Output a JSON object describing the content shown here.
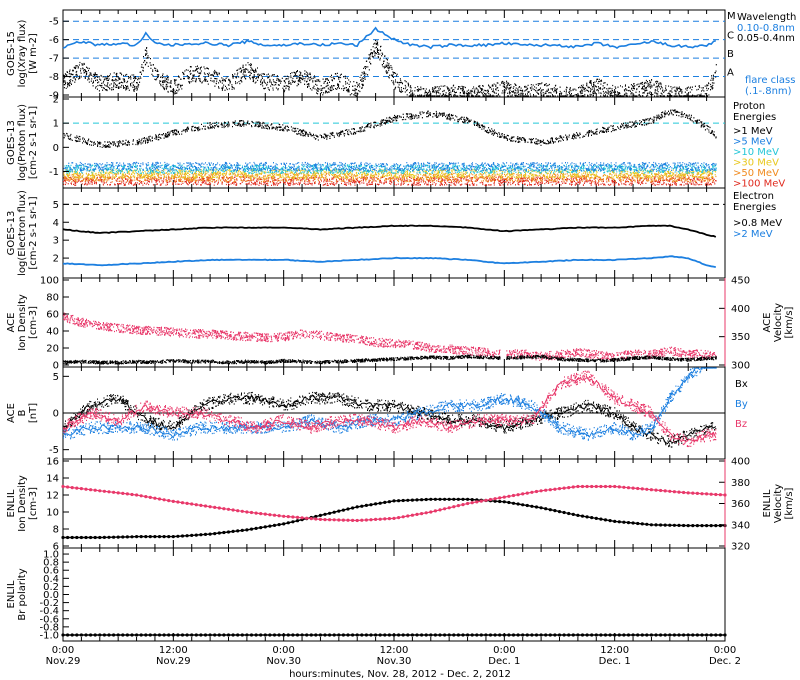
{
  "figure": {
    "xlabel": "hours:minutes, Nov. 28, 2012 - Dec. 2, 2012",
    "x_ticks": [
      {
        "time": "0:00",
        "date": "Nov.29"
      },
      {
        "time": "12:00",
        "date": "Nov.29"
      },
      {
        "time": "0:00",
        "date": "Nov.30"
      },
      {
        "time": "12:00",
        "date": "Nov.30"
      },
      {
        "time": "0:00",
        "date": "Dec. 1"
      },
      {
        "time": "12:00",
        "date": "Dec. 1"
      },
      {
        "time": "0:00",
        "date": "Dec. 2"
      }
    ]
  },
  "colors": {
    "black": "#000000",
    "blue": "#1c7fe0",
    "pink": "#e8386a",
    "cyan": "#24c6d8",
    "green": "#3fbf3f",
    "yellow": "#e8c81e",
    "orange": "#f08a1e",
    "red": "#e02a1e"
  },
  "chart_data": [
    {
      "type": "line",
      "ylabel_1": "GOES-15",
      "ylabel_2": "log(Xray flux)",
      "ylabel_3": "[W m-2]",
      "ylim": [
        -9,
        -4.5
      ],
      "y_ticks": [
        "-5",
        "-6",
        "-7",
        "-8",
        "-9"
      ],
      "flare_classes": [
        "M",
        "C",
        "B",
        "A"
      ],
      "legend_title": "Wavelength",
      "legend_items": [
        {
          "name": "0.10-0.8nm",
          "color": "#1c7fe0"
        },
        {
          "name": "0.05-0.4nm",
          "color": "#000000"
        }
      ],
      "legend_note_1": "flare class",
      "legend_note_2": "(.1-.8nm)",
      "x_hours": [
        0,
        2,
        4,
        6,
        8,
        9,
        10,
        12,
        14,
        16,
        18,
        20,
        22,
        24,
        26,
        28,
        30,
        32,
        34,
        36,
        38,
        40,
        42,
        44,
        46,
        48,
        50,
        52,
        54,
        56,
        58,
        60,
        62,
        64,
        66,
        68,
        70,
        71
      ],
      "series": [
        {
          "name": "0.10-0.8nm",
          "values": [
            -6.4,
            -6.1,
            -6.3,
            -6.2,
            -6.3,
            -5.7,
            -6.2,
            -6.3,
            -6.2,
            -6.2,
            -6.3,
            -6.1,
            -6.3,
            -6.3,
            -6.2,
            -6.3,
            -6.2,
            -6.3,
            -5.4,
            -6.0,
            -6.3,
            -6.4,
            -6.3,
            -6.3,
            -6.3,
            -6.2,
            -6.3,
            -6.3,
            -6.3,
            -6.4,
            -6.2,
            -6.4,
            -6.3,
            -6.1,
            -6.3,
            -6.4,
            -6.3,
            -6.1
          ]
        },
        {
          "name": "0.05-0.4nm",
          "values": [
            -8.3,
            -7.6,
            -8.4,
            -8.2,
            -8.4,
            -6.8,
            -8.0,
            -8.6,
            -7.8,
            -8.0,
            -8.5,
            -7.6,
            -8.3,
            -8.4,
            -8.0,
            -8.6,
            -8.2,
            -8.8,
            -6.3,
            -8.2,
            -9.0,
            -9.0,
            -8.9,
            -9.0,
            -8.9,
            -8.6,
            -9.0,
            -8.7,
            -9.0,
            -9.0,
            -8.5,
            -9.0,
            -8.8,
            -8.6,
            -9.0,
            -9.0,
            -8.9,
            -7.8
          ]
        }
      ]
    },
    {
      "type": "scatter",
      "ylabel_1": "GOES-13",
      "ylabel_2": "log(Proton flux)",
      "ylabel_3": "[cm-2 s-1 sr-1]",
      "ylim": [
        -1.6,
        2.0
      ],
      "y_ticks": [
        "2",
        "1",
        "0",
        "-1"
      ],
      "legend_title_1": "Proton",
      "legend_title_2": "Energies",
      "legend_items": [
        {
          "name": ">1 MeV",
          "color": "#000000"
        },
        {
          "name": ">5 MeV",
          "color": "#1c7fe0"
        },
        {
          "name": ">10 MeV",
          "color": "#24c6d8"
        },
        {
          "name": ">30 MeV",
          "color": "#e8c81e"
        },
        {
          "name": ">50 MeV",
          "color": "#f08a1e"
        },
        {
          "name": ">100 MeV",
          "color": "#e02a1e"
        }
      ],
      "x_hours": [
        0,
        4,
        8,
        12,
        16,
        20,
        24,
        28,
        32,
        36,
        40,
        44,
        48,
        52,
        56,
        60,
        64,
        66,
        68,
        70,
        71
      ],
      "series": [
        {
          "name": ">1 MeV",
          "values": [
            0.5,
            0.1,
            0.2,
            0.6,
            0.9,
            1.0,
            0.8,
            0.4,
            0.7,
            1.2,
            1.4,
            1.1,
            0.4,
            0.2,
            0.5,
            0.8,
            1.1,
            1.5,
            1.3,
            0.8,
            0.5
          ]
        },
        {
          "name": ">5 MeV",
          "values": [
            -0.8,
            -0.8,
            -0.8,
            -0.8,
            -0.8,
            -0.8,
            -0.8,
            -0.8,
            -0.8,
            -0.8,
            -0.8,
            -0.8,
            -0.8,
            -0.8,
            -0.8,
            -0.8,
            -0.8,
            -0.8,
            -0.8,
            -0.8,
            -0.8
          ]
        },
        {
          "name": ">10 MeV",
          "values": [
            -0.9,
            -0.9,
            -0.9,
            -0.9,
            -0.9,
            -0.9,
            -0.9,
            -0.9,
            -0.9,
            -0.9,
            -0.9,
            -0.9,
            -0.9,
            -0.9,
            -0.9,
            -0.9,
            -0.9,
            -0.9,
            -0.9,
            -0.9,
            -0.9
          ]
        },
        {
          "name": ">30 MeV",
          "values": [
            -1.1,
            -1.1,
            -1.1,
            -1.1,
            -1.1,
            -1.1,
            -1.1,
            -1.1,
            -1.1,
            -1.1,
            -1.1,
            -1.1,
            -1.1,
            -1.1,
            -1.1,
            -1.1,
            -1.1,
            -1.1,
            -1.1,
            -1.1,
            -1.1
          ]
        },
        {
          "name": ">50 MeV",
          "values": [
            -1.25,
            -1.25,
            -1.25,
            -1.25,
            -1.25,
            -1.25,
            -1.25,
            -1.25,
            -1.25,
            -1.25,
            -1.25,
            -1.25,
            -1.25,
            -1.25,
            -1.25,
            -1.25,
            -1.25,
            -1.25,
            -1.25,
            -1.25,
            -1.25
          ]
        },
        {
          "name": ">100 MeV",
          "values": [
            -1.4,
            -1.4,
            -1.4,
            -1.4,
            -1.4,
            -1.4,
            -1.4,
            -1.4,
            -1.4,
            -1.4,
            -1.4,
            -1.4,
            -1.4,
            -1.4,
            -1.4,
            -1.4,
            -1.4,
            -1.4,
            -1.4,
            -1.4,
            -1.4
          ]
        }
      ],
      "reference_line": 1.0
    },
    {
      "type": "line",
      "ylabel_1": "GOES-13",
      "ylabel_2": "log(Electron flux)",
      "ylabel_3": "[cm-2 s-1 sr-1]",
      "ylim": [
        1.0,
        5.8
      ],
      "y_ticks": [
        "5",
        "4",
        "3",
        "2"
      ],
      "legend_title_1": "Electron",
      "legend_title_2": "Energies",
      "legend_items": [
        {
          "name": ">0.8 MeV",
          "color": "#000000"
        },
        {
          "name": ">2 MeV",
          "color": "#1c7fe0"
        }
      ],
      "x_hours": [
        0,
        4,
        8,
        12,
        16,
        20,
        24,
        28,
        32,
        36,
        40,
        44,
        48,
        52,
        56,
        60,
        64,
        66,
        68,
        70,
        71
      ],
      "series": [
        {
          "name": ">0.8 MeV",
          "values": [
            3.6,
            3.4,
            3.5,
            3.6,
            3.7,
            3.7,
            3.7,
            3.6,
            3.7,
            3.8,
            3.8,
            3.7,
            3.5,
            3.6,
            3.7,
            3.7,
            3.8,
            3.8,
            3.6,
            3.3,
            3.2
          ]
        },
        {
          "name": ">2 MeV",
          "values": [
            1.7,
            1.6,
            1.7,
            1.8,
            1.9,
            1.9,
            1.9,
            1.8,
            1.9,
            2.0,
            2.0,
            1.9,
            1.7,
            1.8,
            1.9,
            1.9,
            2.0,
            2.1,
            2.0,
            1.6,
            1.5
          ]
        }
      ],
      "reference_line": 5.0
    },
    {
      "type": "scatter",
      "ylabel_1": "ACE",
      "ylabel_2": "Ion Density",
      "ylabel_3": "[cm-3]",
      "ylim": [
        0,
        100
      ],
      "y_ticks": [
        "100",
        "80",
        "60",
        "40",
        "20",
        "0"
      ],
      "ylabel_right_1": "ACE",
      "ylabel_right_2": "Velocity",
      "ylabel_right_3": "[km/s]",
      "y2lim": [
        300,
        450
      ],
      "y2_ticks": [
        "450",
        "400",
        "350",
        "300"
      ],
      "x_hours": [
        0,
        2,
        4,
        6,
        8,
        10,
        12,
        14,
        16,
        18,
        20,
        22,
        24,
        26,
        28,
        30,
        32,
        34,
        36,
        38,
        40,
        42,
        44,
        46,
        48,
        50,
        52,
        54,
        56,
        58,
        60,
        62,
        64,
        66,
        68,
        70,
        71
      ],
      "series": [
        {
          "name": "Velocity",
          "axis": "right",
          "color": "#e8386a",
          "values": [
            385,
            375,
            370,
            365,
            362,
            360,
            358,
            355,
            355,
            352,
            350,
            348,
            350,
            355,
            352,
            348,
            345,
            340,
            338,
            335,
            330,
            328,
            325,
            322,
            318,
            320,
            315,
            318,
            322,
            318,
            315,
            320,
            318,
            325,
            320,
            318,
            320
          ]
        },
        {
          "name": "Ion Density",
          "axis": "left",
          "color": "#000000",
          "values": [
            3,
            4,
            3,
            3,
            4,
            3,
            5,
            4,
            4,
            3,
            4,
            3,
            5,
            4,
            3,
            4,
            5,
            6,
            7,
            8,
            9,
            8,
            10,
            9,
            8,
            9,
            10,
            7,
            6,
            5,
            6,
            8,
            9,
            7,
            6,
            8,
            8
          ]
        }
      ],
      "data_gap_hours": [
        47.5,
        48.2
      ]
    },
    {
      "type": "line",
      "ylabel_1": "ACE",
      "ylabel_2": "B",
      "ylabel_3": "[nT]",
      "ylim": [
        -6,
        6
      ],
      "y_ticks": [
        "5",
        "0",
        "-5"
      ],
      "legend_items": [
        {
          "name": "Bx",
          "color": "#000000"
        },
        {
          "name": "By",
          "color": "#1c7fe0"
        },
        {
          "name": "Bz",
          "color": "#e8386a"
        }
      ],
      "x_hours": [
        0,
        3,
        6,
        9,
        12,
        15,
        18,
        21,
        24,
        27,
        30,
        33,
        36,
        39,
        42,
        45,
        48,
        51,
        54,
        57,
        60,
        62,
        64,
        66,
        68,
        70,
        71
      ],
      "series": [
        {
          "name": "Bx",
          "values": [
            -2,
            1,
            2,
            -1,
            -2,
            1,
            2,
            2,
            1,
            2,
            2,
            1,
            1,
            0,
            -1,
            -1,
            -2,
            -1,
            0,
            1,
            0,
            -2,
            -3,
            -4,
            -3,
            -2,
            -2
          ]
        },
        {
          "name": "By",
          "values": [
            -3,
            -2,
            -2,
            -2,
            -3,
            -2,
            -2,
            -2,
            -2,
            -1,
            -2,
            -1,
            -1,
            0,
            1,
            1,
            2,
            1,
            -2,
            -3,
            -2,
            -3,
            -2,
            2,
            5,
            7,
            7
          ]
        },
        {
          "name": "Bz",
          "values": [
            -2,
            0,
            -1,
            1,
            0,
            0,
            -1,
            -2,
            -1,
            -2,
            -1,
            -1,
            -2,
            -1,
            -2,
            -1,
            -1,
            -1,
            4,
            5,
            2,
            1,
            0,
            -3,
            -4,
            -3,
            -3
          ]
        }
      ]
    },
    {
      "type": "line",
      "ylabel_1": "ENLIL",
      "ylabel_2": "Ion Density",
      "ylabel_3": "[cm-3]",
      "ylim": [
        6,
        16
      ],
      "y_ticks": [
        "16",
        "14",
        "12",
        "10",
        "8",
        "6"
      ],
      "ylabel_right_1": "ENLIL",
      "ylabel_right_2": "Velocity",
      "ylabel_right_3": "[km/s]",
      "y2lim": [
        320,
        400
      ],
      "y2_ticks": [
        "400",
        "380",
        "360",
        "340",
        "320"
      ],
      "x_hours": [
        0,
        4,
        8,
        12,
        16,
        20,
        24,
        28,
        32,
        36,
        40,
        44,
        48,
        52,
        56,
        60,
        64,
        68,
        72
      ],
      "series": [
        {
          "name": "Density",
          "axis": "left",
          "color": "#000000",
          "values": [
            7.0,
            7.0,
            7.1,
            7.1,
            7.4,
            7.9,
            8.6,
            9.6,
            10.6,
            11.3,
            11.5,
            11.5,
            11.2,
            10.5,
            9.6,
            8.9,
            8.5,
            8.4,
            8.4
          ]
        },
        {
          "name": "Velocity",
          "axis": "right",
          "color": "#e8386a",
          "values": [
            376,
            372,
            368,
            362,
            357,
            352,
            348,
            345,
            344,
            346,
            352,
            360,
            366,
            372,
            376,
            376,
            373,
            370,
            368
          ]
        }
      ]
    },
    {
      "type": "line",
      "ylabel_1": "ENLIL",
      "ylabel_2": "Br polarity",
      "ylim": [
        -1.1,
        1.1
      ],
      "y_ticks": [
        "1.0",
        "0.8",
        "0.6",
        "0.4",
        "0.2",
        "0.0",
        "-0.2",
        "-0.4",
        "-0.6",
        "-0.8",
        "-1.0"
      ],
      "x_hours": [
        0,
        12,
        24,
        36,
        48,
        60,
        72
      ],
      "series": [
        {
          "name": "Br polarity",
          "color": "#000000",
          "values": [
            -1,
            -1,
            -1,
            -1,
            -1,
            -1,
            -1
          ]
        }
      ]
    }
  ]
}
